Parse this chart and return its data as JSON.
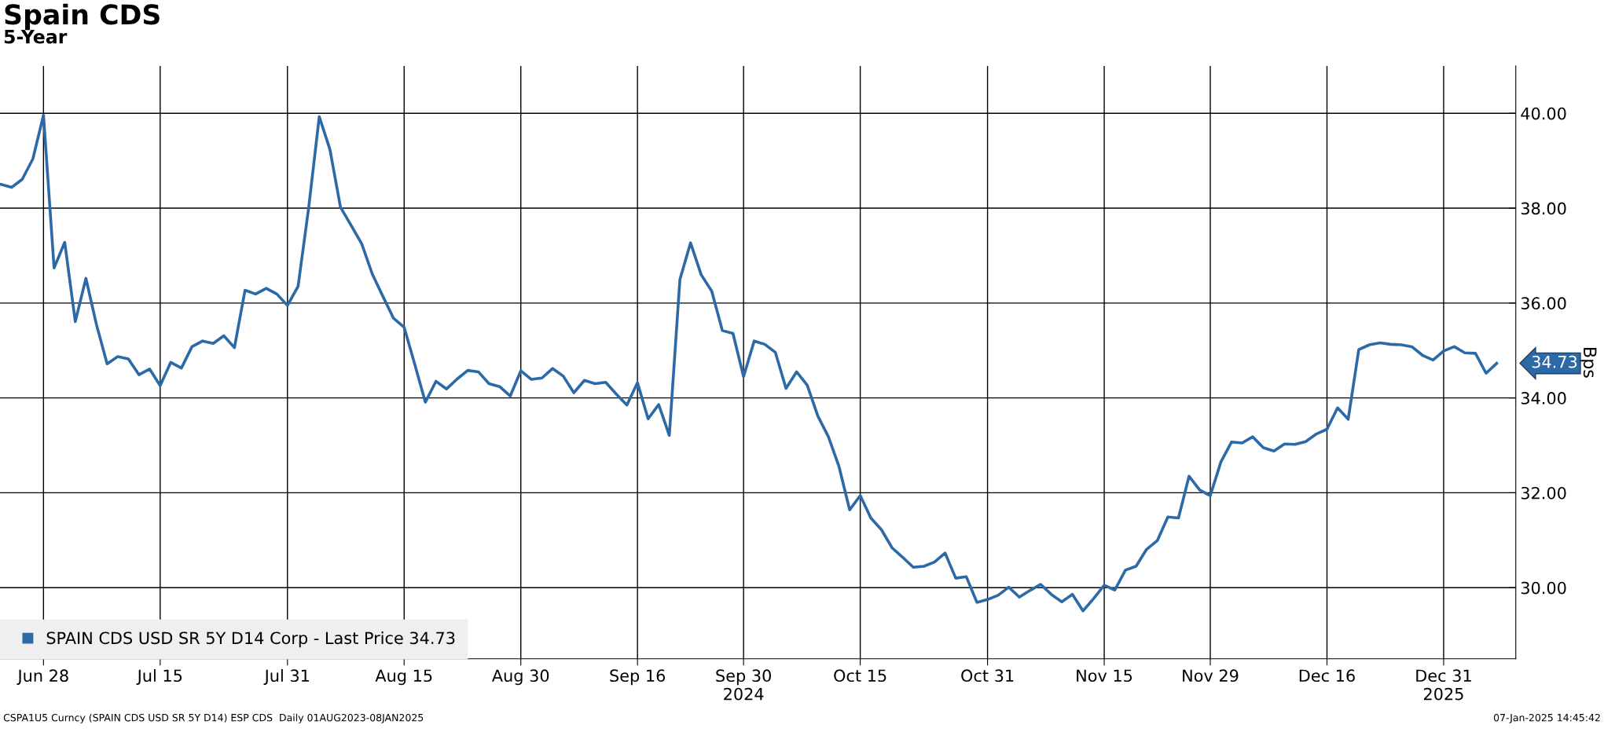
{
  "chart_data": {
    "type": "line",
    "title": "Spain CDS",
    "subtitle": "5-Year",
    "ylabel": "Bps",
    "categories": [
      null,
      null,
      null,
      null,
      "Jun 28",
      null,
      null,
      null,
      null,
      null,
      null,
      null,
      null,
      null,
      null,
      "Jul 15",
      null,
      null,
      null,
      null,
      null,
      null,
      null,
      null,
      null,
      null,
      null,
      "Jul 31",
      null,
      null,
      null,
      null,
      null,
      null,
      null,
      null,
      null,
      null,
      "Aug 15",
      null,
      null,
      null,
      null,
      null,
      null,
      null,
      null,
      null,
      null,
      "Aug 30",
      null,
      null,
      null,
      null,
      null,
      null,
      null,
      null,
      null,
      null,
      "Sep 16",
      null,
      null,
      null,
      null,
      null,
      null,
      null,
      null,
      null,
      "Sep 30\n2024",
      null,
      null,
      null,
      null,
      null,
      null,
      null,
      null,
      null,
      null,
      "Oct 15",
      null,
      null,
      null,
      null,
      null,
      null,
      null,
      null,
      null,
      null,
      null,
      "Oct 31",
      null,
      null,
      null,
      null,
      null,
      null,
      null,
      null,
      null,
      null,
      "Nov 15",
      null,
      null,
      null,
      null,
      null,
      null,
      null,
      null,
      null,
      "Nov 29",
      null,
      null,
      null,
      null,
      null,
      null,
      null,
      null,
      null,
      null,
      "Dec 16",
      null,
      null,
      null,
      null,
      null,
      null,
      null,
      null,
      null,
      null,
      "Dec 31\n2025",
      null,
      null,
      null,
      null,
      null
    ],
    "series": [
      {
        "name": "SPAIN CDS USD SR 5Y D14 Corp - Last Price 34.73",
        "color": "#2c6aa7",
        "values": [
          38.5,
          38.44,
          38.61,
          39.04,
          39.96,
          36.74,
          37.28,
          35.61,
          36.52,
          35.54,
          34.72,
          34.87,
          34.82,
          34.49,
          34.61,
          34.26,
          34.75,
          34.63,
          35.08,
          35.2,
          35.15,
          35.31,
          35.06,
          36.27,
          36.19,
          36.31,
          36.19,
          35.95,
          36.35,
          38.01,
          39.93,
          39.24,
          38.02,
          37.64,
          37.25,
          36.61,
          36.14,
          35.68,
          35.49,
          34.71,
          33.91,
          34.35,
          34.19,
          34.4,
          34.58,
          34.55,
          34.3,
          34.24,
          34.04,
          34.57,
          34.39,
          34.42,
          34.62,
          34.46,
          34.11,
          34.37,
          34.3,
          34.33,
          34.08,
          33.85,
          34.32,
          33.56,
          33.86,
          33.21,
          36.5,
          37.27,
          36.6,
          36.25,
          35.42,
          35.36,
          34.45,
          35.2,
          35.13,
          34.96,
          34.2,
          34.55,
          34.27,
          33.62,
          33.18,
          32.55,
          31.64,
          31.94,
          31.47,
          31.22,
          30.84,
          30.64,
          30.43,
          30.45,
          30.54,
          30.73,
          30.2,
          30.23,
          29.69,
          29.75,
          29.84,
          30.01,
          29.8,
          29.94,
          30.07,
          29.86,
          29.7,
          29.86,
          29.51,
          29.77,
          30.05,
          29.95,
          30.37,
          30.45,
          30.81,
          30.99,
          31.49,
          31.47,
          32.35,
          32.06,
          31.94,
          32.65,
          33.07,
          33.05,
          33.18,
          32.95,
          32.88,
          33.03,
          33.02,
          33.08,
          33.24,
          33.34,
          33.79,
          33.55,
          35.02,
          35.12,
          35.16,
          35.13,
          35.12,
          35.08,
          34.9,
          34.8,
          34.99,
          35.08,
          34.95,
          34.94,
          34.52,
          34.73
        ]
      }
    ],
    "ylim": [
      28.5,
      41.0
    ],
    "yticks": [
      {
        "value": 30,
        "label": "30.00"
      },
      {
        "value": 32,
        "label": "32.00"
      },
      {
        "value": 34,
        "label": "34.00"
      },
      {
        "value": 36,
        "label": "36.00"
      },
      {
        "value": 38,
        "label": "38.00"
      },
      {
        "value": 40,
        "label": "40.00"
      }
    ],
    "grid": true,
    "legend": "bottom left",
    "marker": "none",
    "line_style": "solid",
    "annotations": [
      "34.73",
      "CSPA1U5 Curncy (SPAIN CDS USD SR 5Y D14) ESP CDS  Daily 01AUG2023-08JAN2025",
      "07-Jan-2025 14:45:42"
    ]
  }
}
